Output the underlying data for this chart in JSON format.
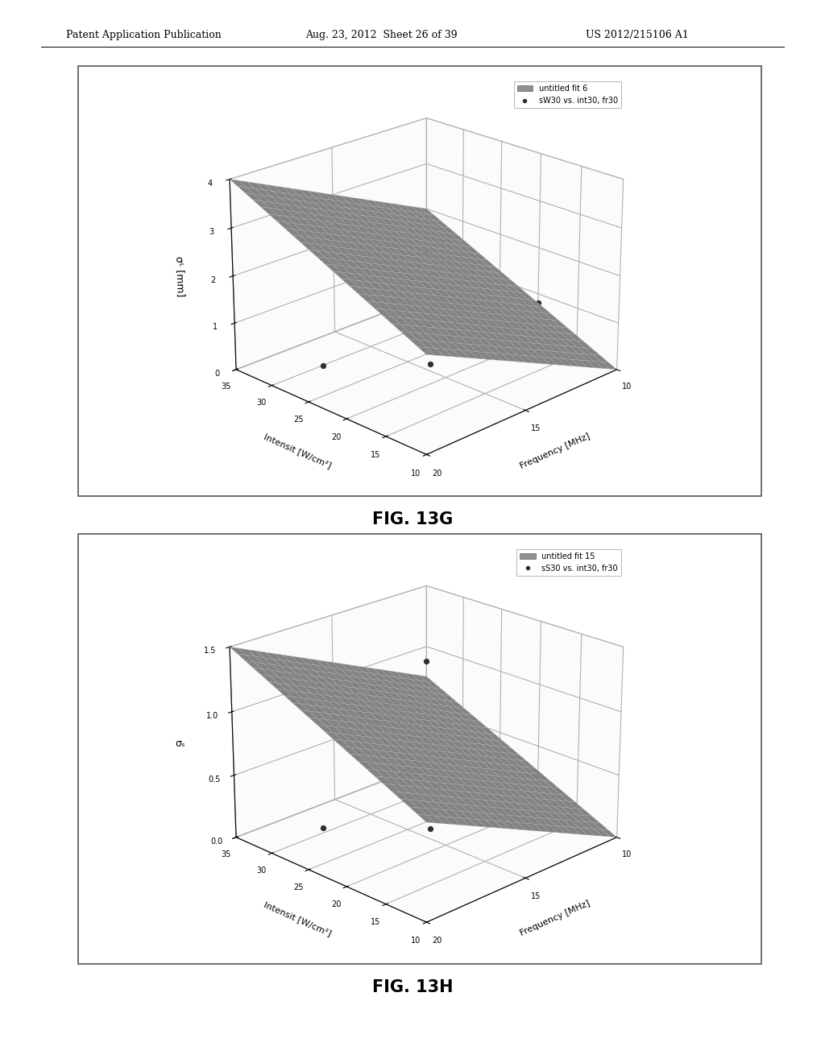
{
  "header_left": "Patent Application Publication",
  "header_mid": "Aug. 23, 2012  Sheet 26 of 39",
  "header_right": "US 2012/215106 A1",
  "fig1_caption": "FIG. 13G",
  "fig2_caption": "FIG. 13H",
  "fig1_legend1": "untitled fit 6",
  "fig1_legend2": "sW30 vs. int30, fr30",
  "fig2_legend1": "untitled fit 15",
  "fig2_legend2": "sS30 vs. int30, fr30",
  "fig1_ylabel": "σᴸ [mm]",
  "fig2_ylabel": "σₛ",
  "xlabel_freq": "Frequency [MHz]",
  "xlabel_int": "Intensit [W/cm²]",
  "freq_range": [
    10,
    20
  ],
  "int_range": [
    10,
    35
  ],
  "fig1_zlim": [
    0,
    4
  ],
  "fig1_zticks": [
    0,
    1,
    2,
    3,
    4
  ],
  "fig2_zlim": [
    0,
    1.5
  ],
  "fig2_zticks": [
    0,
    0.5,
    1,
    1.5
  ],
  "freq_ticks": [
    10,
    15,
    20
  ],
  "int_ticks": [
    10,
    15,
    20,
    25,
    30,
    35
  ],
  "surface_color": "#909090",
  "scatter_color": "#303030",
  "bg_color": "#ffffff",
  "fig1_scatter_points": [
    [
      14,
      11,
      2.0
    ],
    [
      15,
      22,
      0.15
    ],
    [
      10,
      35,
      1.05
    ],
    [
      20,
      23,
      0.9
    ]
  ],
  "fig2_scatter_points": [
    [
      14,
      11,
      0.72
    ],
    [
      15,
      22,
      0.08
    ],
    [
      10,
      35,
      0.88
    ],
    [
      20,
      23,
      0.38
    ]
  ],
  "elev": 22,
  "azim": 225
}
